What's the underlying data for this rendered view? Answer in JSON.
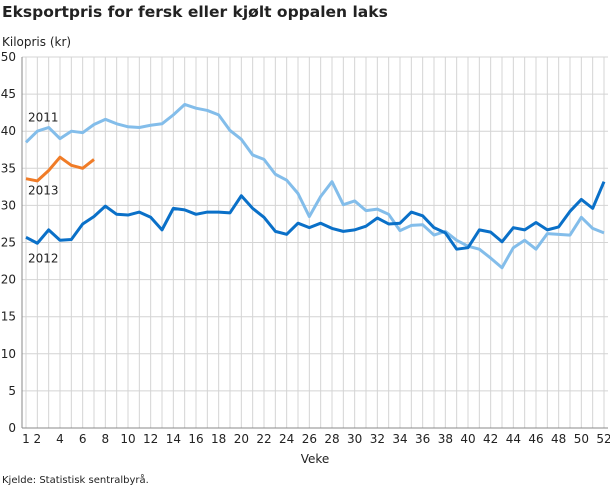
{
  "chart_data": {
    "type": "line",
    "title": "Eksportpris for fersk eller kjølt oppalen laks",
    "ylabel": "Kilopris (kr)",
    "xlabel": "Veke",
    "source": "Kjelde: Statistisk sentralbyrå.",
    "ylim": [
      0,
      50
    ],
    "yticks": [
      0,
      5,
      10,
      15,
      20,
      25,
      30,
      35,
      40,
      45,
      50
    ],
    "xlim": [
      1,
      52
    ],
    "xticks": [
      1,
      2,
      4,
      6,
      8,
      10,
      12,
      14,
      16,
      18,
      20,
      22,
      24,
      26,
      28,
      30,
      32,
      34,
      36,
      38,
      40,
      42,
      44,
      46,
      48,
      50,
      52
    ],
    "grid": true,
    "colors": {
      "2011": "#83bdea",
      "2012": "#0a70c8",
      "2013": "#f07c28",
      "grid": "#d4d4d4"
    },
    "series": [
      {
        "name": "2011",
        "x_start": 1,
        "values": [
          38.5,
          40,
          40.5,
          39,
          40,
          39.8,
          40.9,
          41.6,
          41,
          40.6,
          40.5,
          40.8,
          41,
          42.2,
          43.6,
          43.1,
          42.8,
          42.2,
          40.1,
          38.9,
          36.8,
          36.2,
          34.2,
          33.4,
          31.6,
          28.5,
          31.2,
          33.2,
          30.1,
          30.6,
          29.3,
          29.5,
          28.8,
          26.6,
          27.3,
          27.4,
          26,
          26.5,
          25.3,
          24.5,
          24.1,
          22.9,
          21.6,
          24.3,
          25.3,
          24.1,
          26.2,
          26.1,
          26,
          28.4,
          26.9,
          26.3
        ]
      },
      {
        "name": "2012",
        "x_start": 1,
        "values": [
          25.7,
          24.9,
          26.7,
          25.3,
          25.4,
          27.5,
          28.5,
          29.9,
          28.8,
          28.7,
          29.1,
          28.4,
          26.7,
          29.6,
          29.4,
          28.8,
          29.1,
          29.1,
          29.0,
          31.3,
          29.6,
          28.4,
          26.5,
          26.1,
          27.6,
          27.0,
          27.6,
          26.9,
          26.5,
          26.7,
          27.2,
          28.3,
          27.5,
          27.6,
          29.1,
          28.6,
          27.0,
          26.3,
          24.1,
          24.3,
          26.7,
          26.4,
          25.1,
          27.0,
          26.7,
          27.7,
          26.7,
          27.1,
          29.2,
          30.8,
          29.6,
          33.2
        ]
      },
      {
        "name": "2013",
        "x_start": 1,
        "values": [
          33.6,
          33.3,
          34.7,
          36.5,
          35.4,
          35.0,
          36.2
        ]
      }
    ],
    "annotations": [
      {
        "text": "2011",
        "x": 1,
        "y": 41.3
      },
      {
        "text": "2013",
        "x": 1,
        "y": 31.5
      },
      {
        "text": "2012",
        "x": 1,
        "y": 22.3
      }
    ]
  }
}
